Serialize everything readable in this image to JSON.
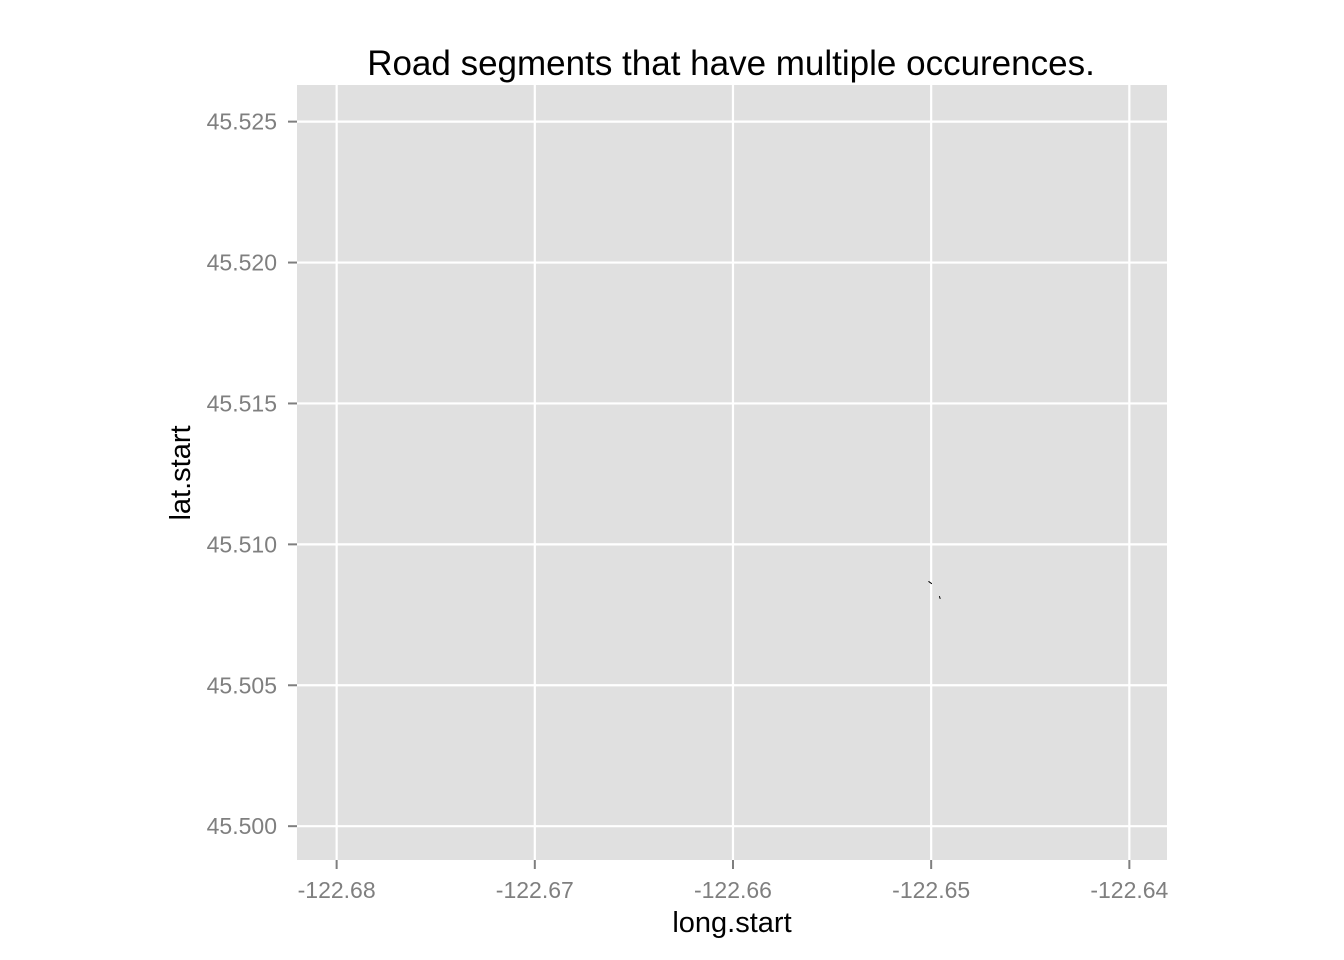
{
  "chart_data": {
    "type": "line",
    "title": "Road segments that have multiple occurences.",
    "xlabel": "long.start",
    "ylabel": "lat.start",
    "xlim": [
      -122.682,
      -122.6381
    ],
    "ylim": [
      45.4988,
      45.5263
    ],
    "x_ticks": [
      -122.68,
      -122.67,
      -122.66,
      -122.65,
      -122.64
    ],
    "x_tick_labels": [
      "-122.68",
      "-122.67",
      "-122.66",
      "-122.65",
      "-122.64"
    ],
    "y_ticks": [
      45.5,
      45.505,
      45.51,
      45.515,
      45.52,
      45.525
    ],
    "y_tick_labels": [
      "45.500",
      "45.505",
      "45.510",
      "45.515",
      "45.520",
      "45.525"
    ],
    "grid": true,
    "series": [
      {
        "segments": [
          {
            "x": [
              -122.65012,
              -122.64998
            ],
            "y": [
              45.50868,
              45.50861
            ]
          },
          {
            "x": [
              -122.64958,
              -122.64955
            ],
            "y": [
              45.50815,
              45.50808
            ]
          }
        ]
      }
    ],
    "colors": {
      "panel_background": "#e0e0e0",
      "grid": "#ffffff",
      "tick": "#7f7f7f",
      "line": "#000000"
    }
  }
}
